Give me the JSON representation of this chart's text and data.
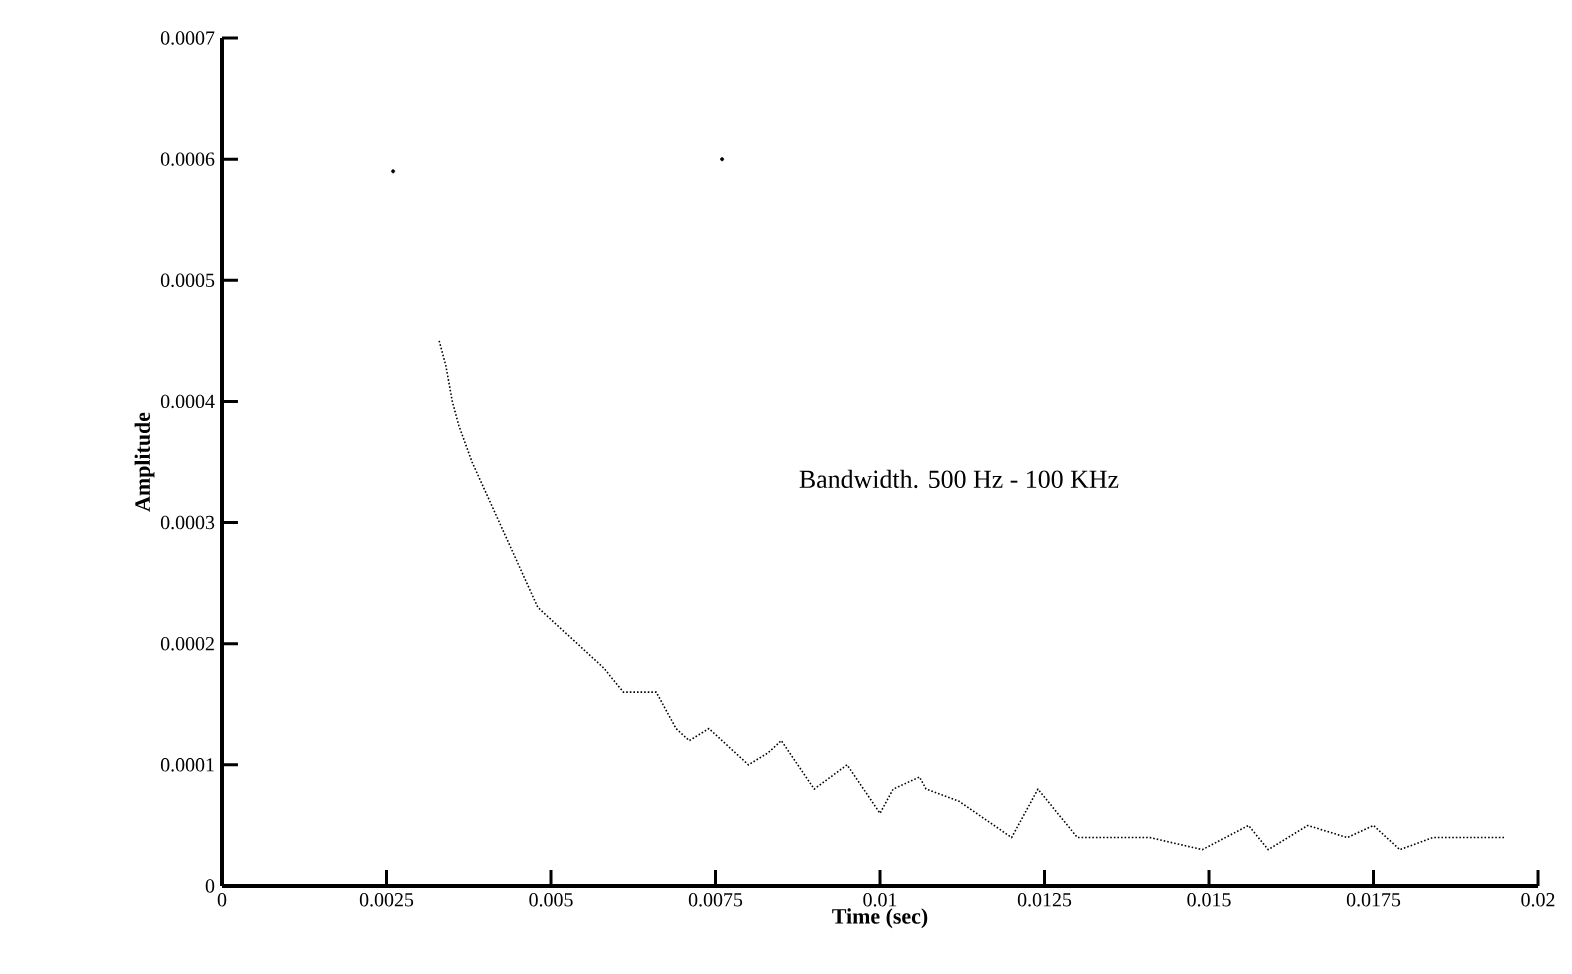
{
  "chart_data": {
    "type": "line",
    "xlabel": "Time (sec)",
    "ylabel": "Amplitude",
    "annotations": [
      "Bandwidth. 500 Hz - 100 KHz"
    ],
    "xlim": [
      0,
      0.02
    ],
    "ylim": [
      0,
      0.0007
    ],
    "xticks": [
      0,
      0.0025,
      0.005,
      0.0075,
      0.01,
      0.0125,
      0.015,
      0.0175,
      0.02
    ],
    "yticks": [
      0,
      0.0001,
      0.0002,
      0.0003,
      0.0004,
      0.0005,
      0.0006,
      0.0007
    ],
    "series": [
      {
        "type": "scatter",
        "color": "#000000",
        "x": [
          0.0026,
          0.0076
        ],
        "values": [
          0.00059,
          0.0006
        ]
      },
      {
        "color": "#000000",
        "line_style": "dotted",
        "x": [
          0.0033,
          0.0034,
          0.0035,
          0.0036,
          0.0038,
          0.0048,
          0.0052,
          0.0054,
          0.0058,
          0.0061,
          0.0066,
          0.0069,
          0.0071,
          0.0074,
          0.0078,
          0.008,
          0.0083,
          0.0085,
          0.009,
          0.0095,
          0.01,
          0.0102,
          0.0106,
          0.0107,
          0.0112,
          0.012,
          0.0124,
          0.013,
          0.014,
          0.0141,
          0.0149,
          0.0156,
          0.0159,
          0.0165,
          0.0171,
          0.0175,
          0.0179,
          0.0184,
          0.0189,
          0.0195
        ],
        "values": [
          0.00045,
          0.00043,
          0.0004,
          0.00038,
          0.00035,
          0.00023,
          0.00021,
          0.0002,
          0.00018,
          0.00016,
          0.00016,
          0.00013,
          0.00012,
          0.00013,
          0.00011,
          0.0001,
          0.00011,
          0.00012,
          8e-05,
          0.0001,
          6e-05,
          8e-05,
          9e-05,
          8e-05,
          7e-05,
          4e-05,
          8e-05,
          4e-05,
          4e-05,
          4e-05,
          3e-05,
          5e-05,
          3e-05,
          5e-05,
          4e-05,
          5e-05,
          3e-05,
          4e-05,
          4e-05,
          4e-05
        ]
      }
    ]
  }
}
